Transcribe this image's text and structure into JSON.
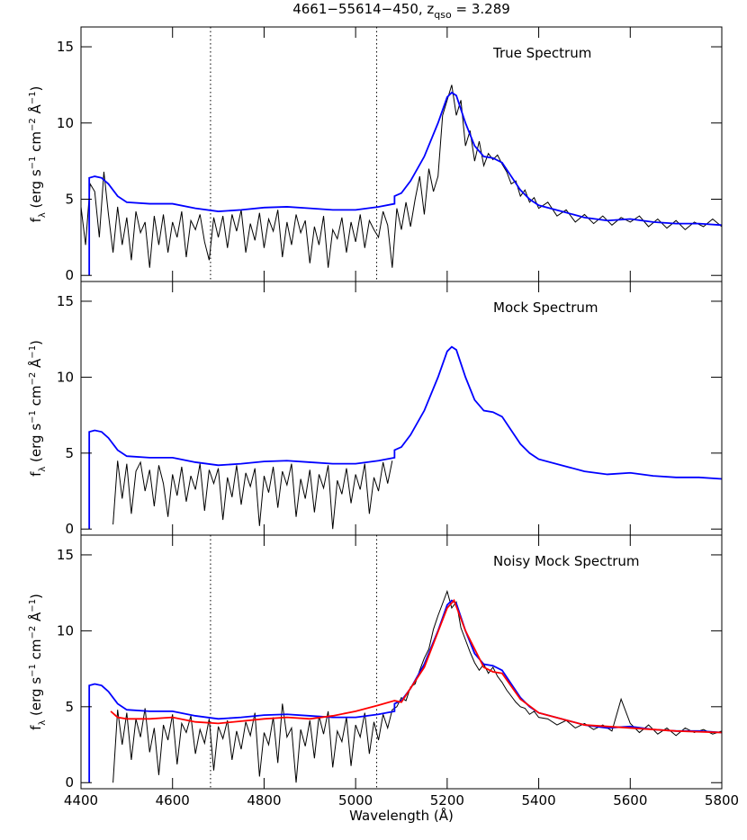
{
  "chart_data": [
    {
      "type": "line",
      "title": [
        "4661−55614−450, z",
        "qso",
        " = 3.289"
      ],
      "annotation": "True Spectrum",
      "ylabel": [
        "f",
        "λ",
        " (erg s",
        "−1",
        " cm",
        "−2",
        " Å",
        "−1",
        ")"
      ],
      "xlim": [
        4400,
        5800
      ],
      "xticks": [
        4400,
        4600,
        4800,
        5000,
        5200,
        5400,
        5600,
        5800
      ],
      "ylim": [
        -0.4,
        16.3
      ],
      "yticks": [
        0,
        5,
        10,
        15
      ],
      "vlines": [
        4683,
        5046
      ],
      "series": [
        {
          "color": "#000000",
          "x": [
            4400,
            4410,
            4420,
            4430,
            4440,
            4450,
            4460,
            4470,
            4480,
            4490,
            4500,
            4510,
            4520,
            4530,
            4540,
            4550,
            4560,
            4570,
            4580,
            4590,
            4600,
            4610,
            4620,
            4630,
            4640,
            4650,
            4660,
            4670,
            4680,
            4690,
            4700,
            4710,
            4720,
            4730,
            4740,
            4750,
            4760,
            4770,
            4780,
            4790,
            4800,
            4810,
            4820,
            4830,
            4840,
            4850,
            4860,
            4870,
            4880,
            4890,
            4900,
            4910,
            4920,
            4930,
            4940,
            4950,
            4960,
            4970,
            4980,
            4990,
            5000,
            5010,
            5020,
            5030,
            5040,
            5050,
            5060,
            5070,
            5080,
            5090,
            5100,
            5110,
            5120,
            5130,
            5140,
            5150,
            5160,
            5170,
            5180,
            5190,
            5200,
            5210,
            5220,
            5230,
            5240,
            5250,
            5260,
            5270,
            5280,
            5290,
            5300,
            5310,
            5320,
            5330,
            5340,
            5350,
            5360,
            5370,
            5380,
            5390,
            5400,
            5420,
            5440,
            5460,
            5480,
            5500,
            5520,
            5540,
            5560,
            5580,
            5600,
            5620,
            5640,
            5660,
            5680,
            5700,
            5720,
            5740,
            5760,
            5780,
            5800
          ],
          "values": [
            4.5,
            2.0,
            6.0,
            5.5,
            2.5,
            6.8,
            4.0,
            1.5,
            4.5,
            2.0,
            3.8,
            1.0,
            4.2,
            2.8,
            3.5,
            0.5,
            3.9,
            2.0,
            4.0,
            1.5,
            3.5,
            2.5,
            4.2,
            1.2,
            3.6,
            3.0,
            4.0,
            2.2,
            1.0,
            3.8,
            2.5,
            3.9,
            1.8,
            4.0,
            2.9,
            4.3,
            1.5,
            3.4,
            2.3,
            4.1,
            1.8,
            3.7,
            2.9,
            4.3,
            1.2,
            3.5,
            2.0,
            4.0,
            2.8,
            3.6,
            0.8,
            3.2,
            2.0,
            3.9,
            0.5,
            3.0,
            2.4,
            3.8,
            1.5,
            3.5,
            2.2,
            4.0,
            1.8,
            3.6,
            3.0,
            2.5,
            4.2,
            3.3,
            0.5,
            4.4,
            3.0,
            4.8,
            3.2,
            5.0,
            6.5,
            4.0,
            7.0,
            5.5,
            6.5,
            10.5,
            11.5,
            12.5,
            10.5,
            11.5,
            8.5,
            9.5,
            7.5,
            8.8,
            7.2,
            8.0,
            7.6,
            7.9,
            7.3,
            6.8,
            6.0,
            6.2,
            5.2,
            5.6,
            4.8,
            5.1,
            4.4,
            4.8,
            3.9,
            4.3,
            3.5,
            4.0,
            3.4,
            3.9,
            3.3,
            3.8,
            3.5,
            3.9,
            3.2,
            3.7,
            3.1,
            3.6,
            3.0,
            3.5,
            3.2,
            3.7,
            3.2
          ]
        },
        {
          "color": "#0000ff",
          "x": [
            4418,
            4418,
            4430,
            4445,
            4460,
            4480,
            4500,
            4550,
            4600,
            4650,
            4700,
            4750,
            4800,
            4850,
            4900,
            4950,
            5000,
            5050,
            5085,
            5085,
            5100,
            5120,
            5150,
            5180,
            5200,
            5210,
            5220,
            5240,
            5260,
            5280,
            5300,
            5320,
            5340,
            5360,
            5380,
            5400,
            5450,
            5500,
            5550,
            5600,
            5650,
            5700,
            5750,
            5800
          ],
          "values": [
            0,
            6.4,
            6.5,
            6.4,
            6.0,
            5.2,
            4.8,
            4.7,
            4.7,
            4.4,
            4.2,
            4.3,
            4.45,
            4.5,
            4.4,
            4.3,
            4.3,
            4.5,
            4.7,
            5.2,
            5.4,
            6.2,
            7.8,
            10.0,
            11.7,
            12.0,
            11.8,
            10.0,
            8.5,
            7.8,
            7.7,
            7.4,
            6.5,
            5.6,
            5.0,
            4.6,
            4.2,
            3.8,
            3.6,
            3.7,
            3.5,
            3.4,
            3.4,
            3.3
          ]
        }
      ]
    },
    {
      "type": "line",
      "annotation": "Mock Spectrum",
      "ylabel": [
        "f",
        "λ",
        " (erg s",
        "−1",
        " cm",
        "−2",
        " Å",
        "−1",
        ")"
      ],
      "xlim": [
        4400,
        5800
      ],
      "xticks": [
        4400,
        4600,
        4800,
        5000,
        5200,
        5400,
        5600,
        5800
      ],
      "ylim": [
        -0.4,
        16.3
      ],
      "yticks": [
        0,
        5,
        10,
        15
      ],
      "series": [
        {
          "color": "#000000",
          "x": [
            4470,
            4480,
            4490,
            4500,
            4510,
            4520,
            4530,
            4540,
            4550,
            4560,
            4570,
            4580,
            4590,
            4600,
            4610,
            4620,
            4630,
            4640,
            4650,
            4660,
            4670,
            4680,
            4690,
            4700,
            4710,
            4720,
            4730,
            4740,
            4750,
            4760,
            4770,
            4780,
            4790,
            4800,
            4810,
            4820,
            4830,
            4840,
            4850,
            4860,
            4870,
            4880,
            4890,
            4900,
            4910,
            4920,
            4930,
            4940,
            4950,
            4960,
            4970,
            4980,
            4990,
            5000,
            5010,
            5020,
            5030,
            5040,
            5050,
            5060,
            5070,
            5080
          ],
          "values": [
            0.3,
            4.5,
            2.0,
            4.3,
            1.0,
            3.8,
            4.4,
            2.5,
            3.9,
            1.5,
            4.2,
            3.0,
            0.8,
            3.6,
            2.2,
            4.1,
            1.8,
            3.5,
            2.6,
            4.3,
            1.2,
            3.9,
            3.0,
            4.0,
            0.6,
            3.4,
            2.1,
            4.2,
            1.6,
            3.7,
            2.8,
            4.0,
            0.2,
            3.5,
            2.4,
            4.1,
            1.4,
            3.8,
            2.9,
            4.3,
            0.8,
            3.3,
            2.0,
            3.9,
            1.1,
            3.6,
            2.7,
            4.2,
            0.0,
            3.2,
            2.3,
            4.0,
            1.7,
            3.6,
            2.6,
            4.3,
            1.0,
            3.4,
            2.5,
            4.4,
            3.0,
            4.5
          ]
        },
        {
          "color": "#0000ff",
          "x": [
            4418,
            4418,
            4430,
            4445,
            4460,
            4480,
            4500,
            4550,
            4600,
            4650,
            4700,
            4750,
            4800,
            4850,
            4900,
            4950,
            5000,
            5050,
            5085,
            5085,
            5100,
            5120,
            5150,
            5180,
            5200,
            5210,
            5220,
            5240,
            5260,
            5280,
            5300,
            5320,
            5340,
            5360,
            5380,
            5400,
            5450,
            5500,
            5550,
            5600,
            5650,
            5700,
            5750,
            5800
          ],
          "values": [
            0,
            6.4,
            6.5,
            6.4,
            6.0,
            5.2,
            4.8,
            4.7,
            4.7,
            4.4,
            4.2,
            4.3,
            4.45,
            4.5,
            4.4,
            4.3,
            4.3,
            4.5,
            4.7,
            5.2,
            5.4,
            6.2,
            7.8,
            10.0,
            11.7,
            12.0,
            11.8,
            10.0,
            8.5,
            7.8,
            7.7,
            7.4,
            6.5,
            5.6,
            5.0,
            4.6,
            4.2,
            3.8,
            3.6,
            3.7,
            3.5,
            3.4,
            3.4,
            3.3
          ]
        }
      ]
    },
    {
      "type": "line",
      "annotation": "Noisy Mock Spectrum",
      "ylabel": [
        "f",
        "λ",
        " (erg s",
        "−1",
        " cm",
        "−2",
        " Å",
        "−1",
        ")"
      ],
      "xlabel": "Wavelength (Å)",
      "xlim": [
        4400,
        5800
      ],
      "xticks": [
        4400,
        4600,
        4800,
        5000,
        5200,
        5400,
        5600,
        5800
      ],
      "ylim": [
        -0.4,
        16.3
      ],
      "yticks": [
        0,
        5,
        10,
        15
      ],
      "vlines": [
        4683,
        5046
      ],
      "series": [
        {
          "color": "#000000",
          "x": [
            4470,
            4480,
            4490,
            4500,
            4510,
            4520,
            4530,
            4540,
            4550,
            4560,
            4570,
            4580,
            4590,
            4600,
            4610,
            4620,
            4630,
            4640,
            4650,
            4660,
            4670,
            4680,
            4690,
            4700,
            4710,
            4720,
            4730,
            4740,
            4750,
            4760,
            4770,
            4780,
            4790,
            4800,
            4810,
            4820,
            4830,
            4840,
            4850,
            4860,
            4870,
            4880,
            4890,
            4900,
            4910,
            4920,
            4930,
            4940,
            4950,
            4960,
            4970,
            4980,
            4990,
            5000,
            5010,
            5020,
            5030,
            5040,
            5050,
            5060,
            5070,
            5080,
            5090,
            5100,
            5110,
            5120,
            5130,
            5140,
            5150,
            5160,
            5170,
            5180,
            5190,
            5200,
            5210,
            5220,
            5230,
            5240,
            5250,
            5260,
            5270,
            5280,
            5290,
            5300,
            5310,
            5320,
            5330,
            5340,
            5350,
            5360,
            5370,
            5380,
            5390,
            5400,
            5420,
            5440,
            5460,
            5480,
            5500,
            5520,
            5540,
            5560,
            5580,
            5600,
            5620,
            5640,
            5660,
            5680,
            5700,
            5720,
            5740,
            5760,
            5780,
            5800
          ],
          "values": [
            0.0,
            4.8,
            2.5,
            4.6,
            1.5,
            4.2,
            3.0,
            4.9,
            2.0,
            3.6,
            0.5,
            3.8,
            2.8,
            4.5,
            1.2,
            3.9,
            3.3,
            4.4,
            1.9,
            3.5,
            2.6,
            4.2,
            0.8,
            3.7,
            2.9,
            4.1,
            1.5,
            3.4,
            2.2,
            4.0,
            3.1,
            4.6,
            0.4,
            3.3,
            2.5,
            4.3,
            1.3,
            5.2,
            3.0,
            3.6,
            0.0,
            3.5,
            2.4,
            4.1,
            1.6,
            4.4,
            3.2,
            4.7,
            1.0,
            3.4,
            2.7,
            4.3,
            1.1,
            3.8,
            3.0,
            4.6,
            1.9,
            4.0,
            2.8,
            4.5,
            3.6,
            4.8,
            5.0,
            5.6,
            5.4,
            6.3,
            6.5,
            7.4,
            8.2,
            8.8,
            10.1,
            11.0,
            11.8,
            12.6,
            11.5,
            11.9,
            10.2,
            9.4,
            8.6,
            7.9,
            7.4,
            7.8,
            7.2,
            7.6,
            7.0,
            6.6,
            6.1,
            5.7,
            5.3,
            5.0,
            4.9,
            4.5,
            4.7,
            4.3,
            4.2,
            3.8,
            4.1,
            3.6,
            3.9,
            3.5,
            3.8,
            3.4,
            5.5,
            3.9,
            3.3,
            3.8,
            3.2,
            3.6,
            3.1,
            3.6,
            3.3,
            3.5,
            3.2,
            3.4
          ]
        },
        {
          "color": "#0000ff",
          "x": [
            4418,
            4418,
            4430,
            4445,
            4460,
            4480,
            4500,
            4550,
            4600,
            4650,
            4700,
            4750,
            4800,
            4850,
            4900,
            4950,
            5000,
            5050,
            5085,
            5085,
            5100,
            5120,
            5150,
            5180,
            5200,
            5210,
            5220,
            5240,
            5260,
            5280,
            5300,
            5320,
            5340,
            5360,
            5380,
            5400,
            5450,
            5500,
            5550,
            5600,
            5650,
            5700,
            5750,
            5800
          ],
          "values": [
            0,
            6.4,
            6.5,
            6.4,
            6.0,
            5.2,
            4.8,
            4.7,
            4.7,
            4.4,
            4.2,
            4.3,
            4.45,
            4.5,
            4.4,
            4.3,
            4.3,
            4.5,
            4.7,
            5.2,
            5.4,
            6.2,
            7.8,
            10.0,
            11.7,
            12.0,
            11.8,
            10.0,
            8.5,
            7.8,
            7.7,
            7.4,
            6.5,
            5.6,
            5.0,
            4.6,
            4.2,
            3.8,
            3.6,
            3.7,
            3.5,
            3.4,
            3.4,
            3.3
          ]
        },
        {
          "color": "#ff0000",
          "x": [
            4465,
            4480,
            4500,
            4550,
            4600,
            4650,
            4700,
            4750,
            4800,
            4850,
            4900,
            4950,
            5000,
            5050,
            5085,
            5100,
            5150,
            5200,
            5215,
            5240,
            5280,
            5300,
            5320,
            5360,
            5400,
            5500,
            5600,
            5700,
            5800
          ],
          "values": [
            4.7,
            4.3,
            4.2,
            4.2,
            4.3,
            4.0,
            3.9,
            4.05,
            4.2,
            4.3,
            4.2,
            4.4,
            4.7,
            5.1,
            5.4,
            5.3,
            7.6,
            11.5,
            12.0,
            10.0,
            7.6,
            7.3,
            7.2,
            5.5,
            4.6,
            3.8,
            3.6,
            3.4,
            3.3
          ]
        }
      ]
    }
  ]
}
